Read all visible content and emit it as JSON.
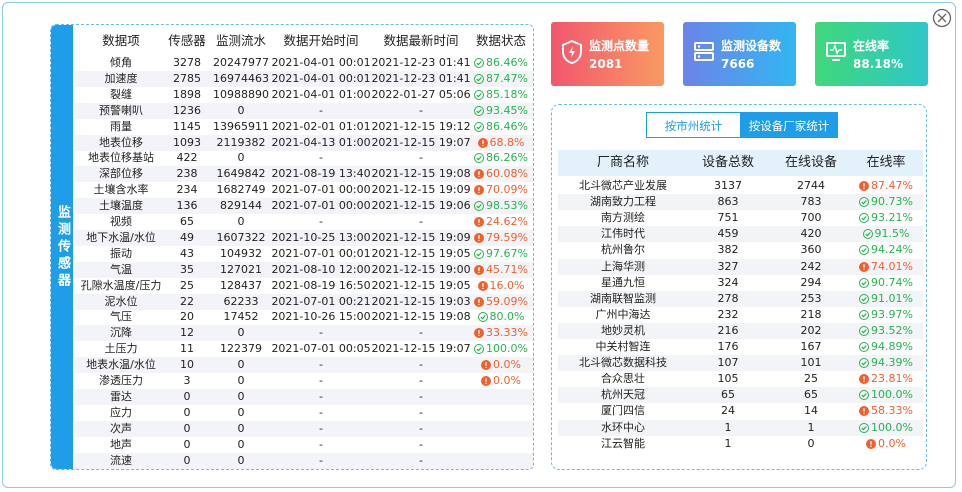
{
  "sensor_table": {
    "side_label": "监测传感器",
    "headers": [
      "数据项",
      "传感器",
      "监测流水",
      "数据开始时间",
      "数据最新时间",
      "数据状态"
    ],
    "rows": [
      {
        "item": "倾角",
        "sensors": 3278,
        "flow": 20247977,
        "start": "2021-04-01 00:01",
        "latest": "2021-12-23 01:41",
        "status": "86.46%",
        "color": "#27b34f"
      },
      {
        "item": "加速度",
        "sensors": 2785,
        "flow": 16974463,
        "start": "2021-04-01 00:01",
        "latest": "2021-12-23 01:41",
        "status": "87.47%",
        "color": "#27b34f"
      },
      {
        "item": "裂缝",
        "sensors": 1898,
        "flow": 10988890,
        "start": "2021-04-01 01:00",
        "latest": "2022-01-27 05:06",
        "status": "85.18%",
        "color": "#27b34f"
      },
      {
        "item": "预警喇叭",
        "sensors": 1236,
        "flow": 0,
        "start": "-",
        "latest": "-",
        "status": "93.45%",
        "color": "#27b34f"
      },
      {
        "item": "雨量",
        "sensors": 1145,
        "flow": 13965911,
        "start": "2021-02-01 01:01",
        "latest": "2021-12-15 19:12",
        "status": "86.46%",
        "color": "#27b34f"
      },
      {
        "item": "地表位移",
        "sensors": 1093,
        "flow": 2119382,
        "start": "2021-04-13 01:00",
        "latest": "2021-12-15 19:07",
        "status": "68.8%",
        "color": "#f0602e"
      },
      {
        "item": "地表位移基站",
        "sensors": 422,
        "flow": 0,
        "start": "-",
        "latest": "-",
        "status": "86.26%",
        "color": "#27b34f"
      },
      {
        "item": "深部位移",
        "sensors": 238,
        "flow": 1649842,
        "start": "2021-08-19 13:40",
        "latest": "2021-12-15 19:08",
        "status": "60.08%",
        "color": "#f0602e"
      },
      {
        "item": "土壤含水率",
        "sensors": 234,
        "flow": 1682749,
        "start": "2021-07-01 00:00",
        "latest": "2021-12-15 19:09",
        "status": "70.09%",
        "color": "#f0602e"
      },
      {
        "item": "土壤温度",
        "sensors": 136,
        "flow": 829144,
        "start": "2021-07-01 00:00",
        "latest": "2021-12-15 19:06",
        "status": "98.53%",
        "color": "#27b34f"
      },
      {
        "item": "视频",
        "sensors": 65,
        "flow": 0,
        "start": "-",
        "latest": "-",
        "status": "24.62%",
        "color": "#f0602e"
      },
      {
        "item": "地下水温/水位",
        "sensors": 49,
        "flow": 1607322,
        "start": "2021-10-25 13:00",
        "latest": "2021-12-15 19:09",
        "status": "79.59%",
        "color": "#f0602e"
      },
      {
        "item": "振动",
        "sensors": 43,
        "flow": 104932,
        "start": "2021-07-01 00:01",
        "latest": "2021-12-15 19:05",
        "status": "97.67%",
        "color": "#27b34f"
      },
      {
        "item": "气温",
        "sensors": 35,
        "flow": 127021,
        "start": "2021-08-10 12:00",
        "latest": "2021-12-15 19:00",
        "status": "45.71%",
        "color": "#f0602e"
      },
      {
        "item": "孔隙水温度/压力",
        "sensors": 25,
        "flow": 128437,
        "start": "2021-08-19 16:50",
        "latest": "2021-12-15 19:05",
        "status": "16.0%",
        "color": "#f0602e"
      },
      {
        "item": "泥水位",
        "sensors": 22,
        "flow": 62233,
        "start": "2021-07-01 00:21",
        "latest": "2021-12-15 19:03",
        "status": "59.09%",
        "color": "#f0602e"
      },
      {
        "item": "气压",
        "sensors": 20,
        "flow": 17452,
        "start": "2021-10-26 15:00",
        "latest": "2021-12-15 19:08",
        "status": "80.0%",
        "color": "#27b34f"
      },
      {
        "item": "沉降",
        "sensors": 12,
        "flow": 0,
        "start": "-",
        "latest": "-",
        "status": "33.33%",
        "color": "#f0602e"
      },
      {
        "item": "土压力",
        "sensors": 11,
        "flow": 122379,
        "start": "2021-07-01 00:05",
        "latest": "2021-12-15 19:07",
        "status": "100.0%",
        "color": "#27b34f"
      },
      {
        "item": "地表水温/水位",
        "sensors": 10,
        "flow": 0,
        "start": "-",
        "latest": "-",
        "status": "0.0%",
        "color": "#f0602e"
      },
      {
        "item": "渗透压力",
        "sensors": 3,
        "flow": 0,
        "start": "-",
        "latest": "-",
        "status": "0.0%",
        "color": "#f0602e"
      },
      {
        "item": "雷达",
        "sensors": 0,
        "flow": 0,
        "start": "-",
        "latest": "-"
      },
      {
        "item": "应力",
        "sensors": 0,
        "flow": 0,
        "start": "-",
        "latest": "-"
      },
      {
        "item": "次声",
        "sensors": 0,
        "flow": 0,
        "start": "-",
        "latest": "-"
      },
      {
        "item": "地声",
        "sensors": 0,
        "flow": 0,
        "start": "-",
        "latest": "-"
      },
      {
        "item": "流速",
        "sensors": 0,
        "flow": 0,
        "start": "-",
        "latest": "-"
      }
    ]
  },
  "cards": [
    {
      "label": "监测点数量",
      "value": 2081
    },
    {
      "label": "监测设备数",
      "value": 7666
    },
    {
      "label": "在线率",
      "value": "88.18%"
    }
  ],
  "vendor_table": {
    "tabs": [
      "按市州统计",
      "按设备厂家统计"
    ],
    "headers": [
      "厂商名称",
      "设备总数",
      "在线设备",
      "在线率"
    ],
    "rows": [
      {
        "name": "北斗微芯产业发展",
        "total": 3137,
        "online": 2744,
        "rate": "87.47%",
        "color": "#f0602e"
      },
      {
        "name": "湖南致力工程",
        "total": 863,
        "online": 783,
        "rate": "90.73%",
        "color": "#27b34f"
      },
      {
        "name": "南方测绘",
        "total": 751,
        "online": 700,
        "rate": "93.21%",
        "color": "#27b34f"
      },
      {
        "name": "江伟时代",
        "total": 459,
        "online": 420,
        "rate": "91.5%",
        "color": "#27b34f"
      },
      {
        "name": "杭州鲁尔",
        "total": 382,
        "online": 360,
        "rate": "94.24%",
        "color": "#27b34f"
      },
      {
        "name": "上海华测",
        "total": 327,
        "online": 242,
        "rate": "74.01%",
        "color": "#f0602e"
      },
      {
        "name": "星通九恒",
        "total": 324,
        "online": 294,
        "rate": "90.74%",
        "color": "#27b34f"
      },
      {
        "name": "湖南联智监测",
        "total": 278,
        "online": 253,
        "rate": "91.01%",
        "color": "#27b34f"
      },
      {
        "name": "广州中海达",
        "total": 232,
        "online": 218,
        "rate": "93.97%",
        "color": "#27b34f"
      },
      {
        "name": "地妙灵机",
        "total": 216,
        "online": 202,
        "rate": "93.52%",
        "color": "#27b34f"
      },
      {
        "name": "中关村智连",
        "total": 176,
        "online": 167,
        "rate": "94.89%",
        "color": "#27b34f"
      },
      {
        "name": "北斗微芯数据科技",
        "total": 107,
        "online": 101,
        "rate": "94.39%",
        "color": "#27b34f"
      },
      {
        "name": "合众思壮",
        "total": 105,
        "online": 25,
        "rate": "23.81%",
        "color": "#f0602e"
      },
      {
        "name": "杭州天冠",
        "total": 65,
        "online": 65,
        "rate": "100.0%",
        "color": "#27b34f"
      },
      {
        "name": "厦门四信",
        "total": 24,
        "online": 14,
        "rate": "58.33%",
        "color": "#f0602e"
      },
      {
        "name": "水环中心",
        "total": 1,
        "online": 1,
        "rate": "100.0%",
        "color": "#27b34f"
      },
      {
        "name": "江云智能",
        "total": 1,
        "online": 0,
        "rate": "0.0%",
        "color": "#f0602e"
      }
    ]
  }
}
